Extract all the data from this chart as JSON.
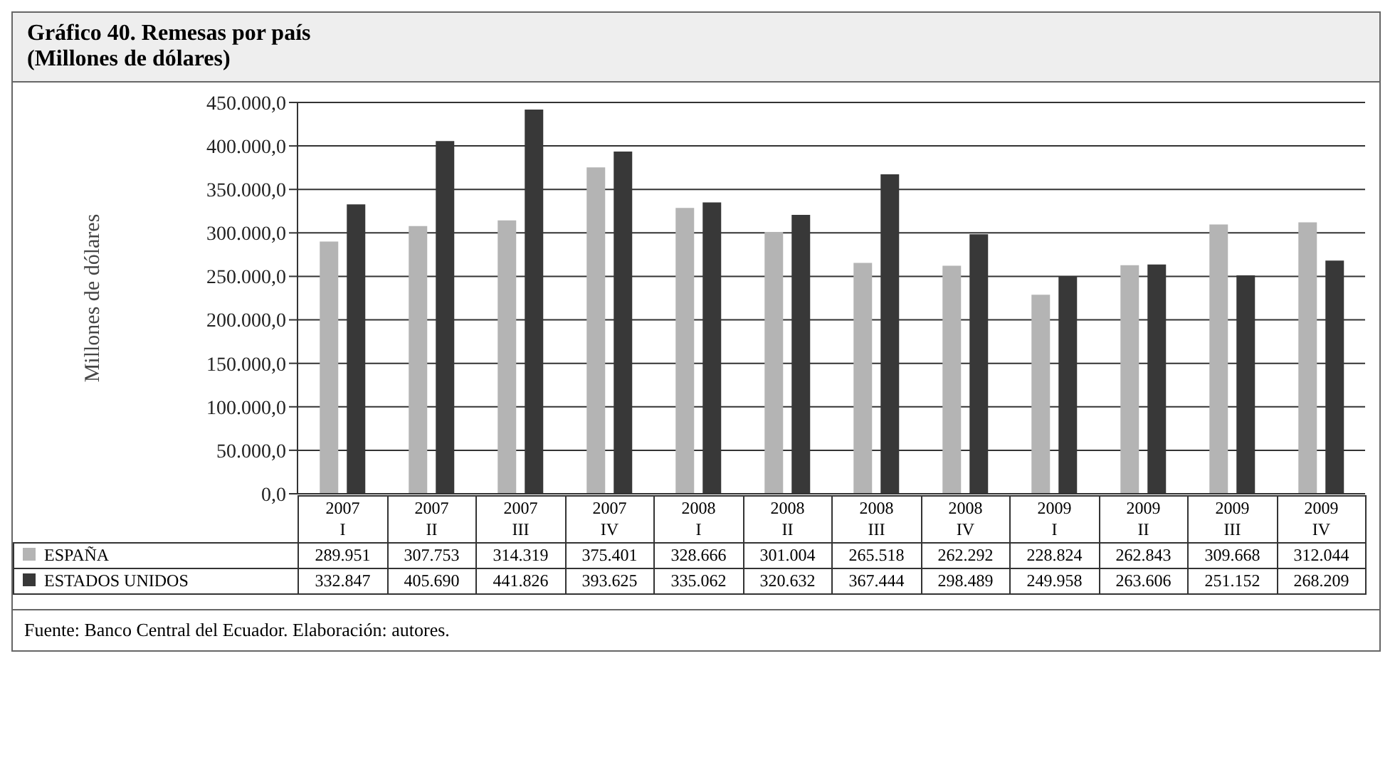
{
  "chart_data": {
    "type": "bar",
    "title": "Gráfico 40. Remesas por país",
    "subtitle": "(Millones de dólares)",
    "ylabel": "Millones de dólares",
    "categories": [
      "2007 I",
      "2007 II",
      "2007 III",
      "2007 IV",
      "2008 I",
      "2008 II",
      "2008 III",
      "2008 IV",
      "2009 I",
      "2009 II",
      "2009 III",
      "2009 IV"
    ],
    "series": [
      {
        "name": "ESPAÑA",
        "color": "#b4b4b4",
        "values": [
          289951,
          307753,
          314319,
          375401,
          328666,
          301004,
          265518,
          262292,
          228824,
          262843,
          309668,
          312044
        ],
        "value_labels": [
          "289.951",
          "307.753",
          "314.319",
          "375.401",
          "328.666",
          "301.004",
          "265.518",
          "262.292",
          "228.824",
          "262.843",
          "309.668",
          "312.044"
        ]
      },
      {
        "name": "ESTADOS UNIDOS",
        "color": "#383838",
        "values": [
          332847,
          405690,
          441826,
          393625,
          335062,
          320632,
          367444,
          298489,
          249958,
          263606,
          251152,
          268209
        ],
        "value_labels": [
          "332.847",
          "405.690",
          "441.826",
          "393.625",
          "335.062",
          "320.632",
          "367.444",
          "298.489",
          "249.958",
          "263.606",
          "251.152",
          "268.209"
        ]
      }
    ],
    "ylim": [
      0,
      450000
    ],
    "yticks": [
      {
        "value": 0,
        "label": "0,0"
      },
      {
        "value": 50000,
        "label": "50.000,0"
      },
      {
        "value": 100000,
        "label": "100.000,0"
      },
      {
        "value": 150000,
        "label": "150.000,0"
      },
      {
        "value": 200000,
        "label": "200.000,0"
      },
      {
        "value": 250000,
        "label": "250.000,0"
      },
      {
        "value": 300000,
        "label": "300.000,0"
      },
      {
        "value": 350000,
        "label": "350.000,0"
      },
      {
        "value": 400000,
        "label": "400.000,0"
      },
      {
        "value": 450000,
        "label": "450.000,0"
      }
    ],
    "grid": "y",
    "legend": "bottom",
    "annotations": [
      "Fuente: Banco Central del Ecuador. Elaboración: autores."
    ]
  }
}
